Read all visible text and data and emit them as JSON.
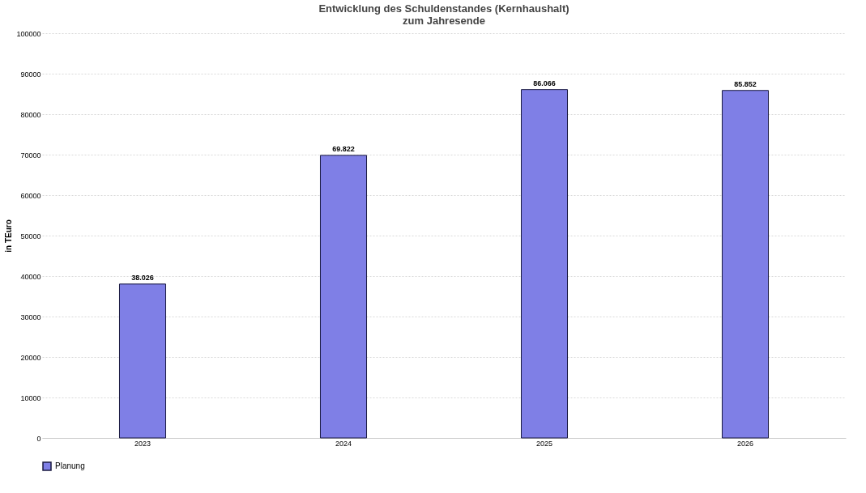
{
  "chart_data": {
    "type": "bar",
    "title": "Entwicklung des Schuldenstandes (Kernhaushalt)\nzum Jahresende",
    "ylabel": "in TEuro",
    "categories": [
      "2023",
      "2024",
      "2025",
      "2026"
    ],
    "series": [
      {
        "name": "Planung",
        "color": "#7f7fe6",
        "values": [
          38026,
          69822,
          86066,
          85852
        ],
        "value_labels": [
          "38.026",
          "69.822",
          "86.066",
          "85.852"
        ]
      }
    ],
    "ylim": [
      0,
      100000
    ],
    "yticks": [
      0,
      10000,
      20000,
      30000,
      40000,
      50000,
      60000,
      70000,
      80000,
      90000,
      100000
    ],
    "grid": "y",
    "legend": "bottom"
  }
}
